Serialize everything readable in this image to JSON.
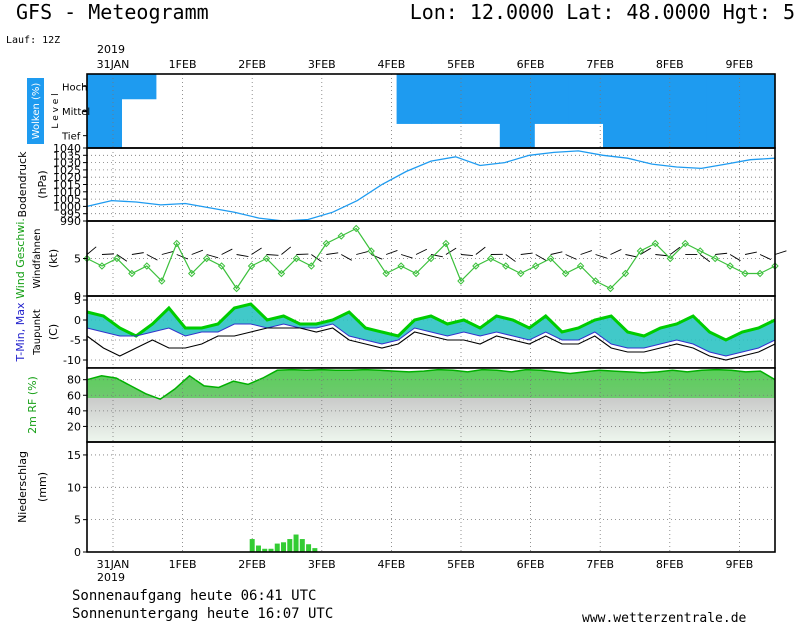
{
  "header": {
    "title": "GFS - Meteogramm",
    "location": "Lon: 12.0000 Lat: 48.0000 Hgt: 5",
    "run": "Lauf: 12Z",
    "year": "2019"
  },
  "footer": {
    "sunrise": "Sonnenaufgang heute 06:41 UTC",
    "sunset": "Sonnenuntergang heute 16:07 UTC",
    "site": "www.wetterzentrale.de"
  },
  "colors": {
    "sky": "#1e9bf0",
    "pressure": "#1e9bf0",
    "wind": "#3cc03c",
    "tmax": "#00cc00",
    "tmin": "#20c0c0",
    "rh": "#33cc33",
    "precip": "#33cc33"
  },
  "chart_data": [
    {
      "type": "heatmap",
      "panel": "clouds",
      "ylabel": "Wolken (%)",
      "axis_label": "L e v e l",
      "levels": [
        "Hoch",
        "Mittel",
        "Tief"
      ],
      "x_dates": [
        "31JAN",
        "1FEB",
        "2FEB",
        "3FEB",
        "4FEB",
        "5FEB",
        "6FEB",
        "7FEB",
        "8FEB",
        "9FEB"
      ],
      "cloud_hoch": [
        95,
        80,
        20,
        5,
        5,
        5,
        10,
        10,
        30,
        85,
        95,
        95,
        95,
        75,
        95,
        95,
        95,
        95,
        95,
        95
      ],
      "cloud_mittel": [
        95,
        40,
        10,
        10,
        5,
        5,
        5,
        10,
        20,
        90,
        95,
        95,
        95,
        95,
        95,
        95,
        95,
        95,
        95,
        90
      ],
      "cloud_tief": [
        90,
        40,
        20,
        10,
        5,
        5,
        10,
        20,
        20,
        40,
        30,
        40,
        50,
        40,
        30,
        50,
        95,
        95,
        60,
        50
      ]
    },
    {
      "type": "line",
      "panel": "pressure",
      "ylabel": "Bodendruck",
      "unit": "(hPa)",
      "ylim": [
        990,
        1040
      ],
      "yticks": [
        990,
        995,
        1000,
        1005,
        1010,
        1015,
        1020,
        1025,
        1030,
        1035,
        1040
      ],
      "series": [
        {
          "values": [
            1000,
            1004,
            1003,
            1001,
            1002,
            999,
            996,
            992,
            990,
            991,
            996,
            1004,
            1015,
            1024,
            1031,
            1034,
            1028,
            1030,
            1035,
            1037,
            1038,
            1035,
            1033,
            1029,
            1027,
            1026,
            1029,
            1032,
            1033
          ]
        }
      ]
    },
    {
      "type": "line",
      "panel": "wind",
      "ylabel": "Wind Geschwi.",
      "ylabel2": "Windfahnen",
      "unit": "(kt)",
      "ylim": [
        0,
        10
      ],
      "yticks": [
        0,
        5
      ],
      "series": [
        {
          "values": [
            5,
            4,
            5,
            3,
            4,
            2,
            7,
            3,
            5,
            4,
            1,
            4,
            5,
            3,
            5,
            4,
            7,
            8,
            9,
            6,
            3,
            4,
            3,
            5,
            7,
            2,
            4,
            5,
            4,
            3,
            4,
            5,
            3,
            4,
            2,
            1,
            3,
            6,
            7,
            5,
            7,
            6,
            5,
            4,
            3,
            3,
            4
          ]
        }
      ]
    },
    {
      "type": "area",
      "panel": "temperature",
      "ylabel": "T-Min, Max",
      "ylabel2": "Taupunkt",
      "unit": "(C)",
      "ylim": [
        -12,
        6
      ],
      "yticks": [
        -10,
        -5,
        0,
        5
      ],
      "series": [
        {
          "name": "T-Max",
          "values": [
            2,
            1,
            -2,
            -4,
            -1,
            3,
            -2,
            -2,
            -1,
            3,
            4,
            0,
            1,
            -1,
            -1,
            0,
            2,
            -2,
            -3,
            -4,
            0,
            1,
            -1,
            0,
            -2,
            1,
            0,
            -2,
            1,
            -3,
            -2,
            0,
            1,
            -3,
            -4,
            -2,
            -1,
            1,
            -3,
            -5,
            -3,
            -2,
            0
          ]
        },
        {
          "name": "T-Min",
          "values": [
            -2,
            -3,
            -4,
            -4,
            -3,
            -2,
            -4,
            -3,
            -3,
            -1,
            -1,
            -2,
            -1,
            -2,
            -2,
            -1,
            -4,
            -5,
            -6,
            -5,
            -2,
            -3,
            -4,
            -3,
            -4,
            -3,
            -4,
            -5,
            -3,
            -5,
            -5,
            -3,
            -6,
            -7,
            -7,
            -6,
            -5,
            -6,
            -8,
            -9,
            -8,
            -7,
            -5
          ]
        },
        {
          "name": "Taupunkt",
          "values": [
            -4,
            -7,
            -9,
            -7,
            -5,
            -7,
            -7,
            -6,
            -4,
            -4,
            -3,
            -2,
            -2,
            -2,
            -3,
            -2,
            -5,
            -6,
            -7,
            -6,
            -3,
            -4,
            -5,
            -5,
            -6,
            -4,
            -5,
            -6,
            -4,
            -6,
            -6,
            -4,
            -7,
            -8,
            -8,
            -7,
            -6,
            -7,
            -9,
            -10,
            -9,
            -8,
            -6
          ]
        }
      ]
    },
    {
      "type": "area",
      "panel": "humidity",
      "ylabel": "2m RF (%)",
      "ylim": [
        0,
        95
      ],
      "yticks": [
        20,
        40,
        60,
        80
      ],
      "series": [
        {
          "values": [
            80,
            85,
            82,
            72,
            62,
            55,
            68,
            85,
            72,
            70,
            78,
            74,
            82,
            92,
            93,
            92,
            93,
            92,
            92,
            93,
            92,
            91,
            90,
            91,
            93,
            92,
            90,
            93,
            92,
            90,
            93,
            92,
            90,
            88,
            90,
            92,
            91,
            90,
            89,
            90,
            92,
            90,
            92,
            93,
            92,
            90,
            91,
            80
          ]
        }
      ]
    },
    {
      "type": "bar",
      "panel": "precipitation",
      "ylabel": "Niederschlag",
      "unit": "(mm)",
      "ylim": [
        0,
        17
      ],
      "yticks": [
        0,
        5,
        10,
        15
      ],
      "x_dates": [
        "31JAN",
        "1FEB",
        "2FEB",
        "3FEB",
        "4FEB",
        "5FEB",
        "6FEB",
        "7FEB",
        "8FEB",
        "9FEB"
      ],
      "bars": [
        {
          "day": 2.0,
          "value": 2.0
        },
        {
          "day": 2.09,
          "value": 1.0
        },
        {
          "day": 2.18,
          "value": 0.5
        },
        {
          "day": 2.27,
          "value": 0.5
        },
        {
          "day": 2.36,
          "value": 1.3
        },
        {
          "day": 2.45,
          "value": 1.5
        },
        {
          "day": 2.54,
          "value": 2.0
        },
        {
          "day": 2.63,
          "value": 2.7
        },
        {
          "day": 2.72,
          "value": 2.0
        },
        {
          "day": 2.81,
          "value": 1.2
        },
        {
          "day": 2.9,
          "value": 0.6
        }
      ]
    }
  ]
}
